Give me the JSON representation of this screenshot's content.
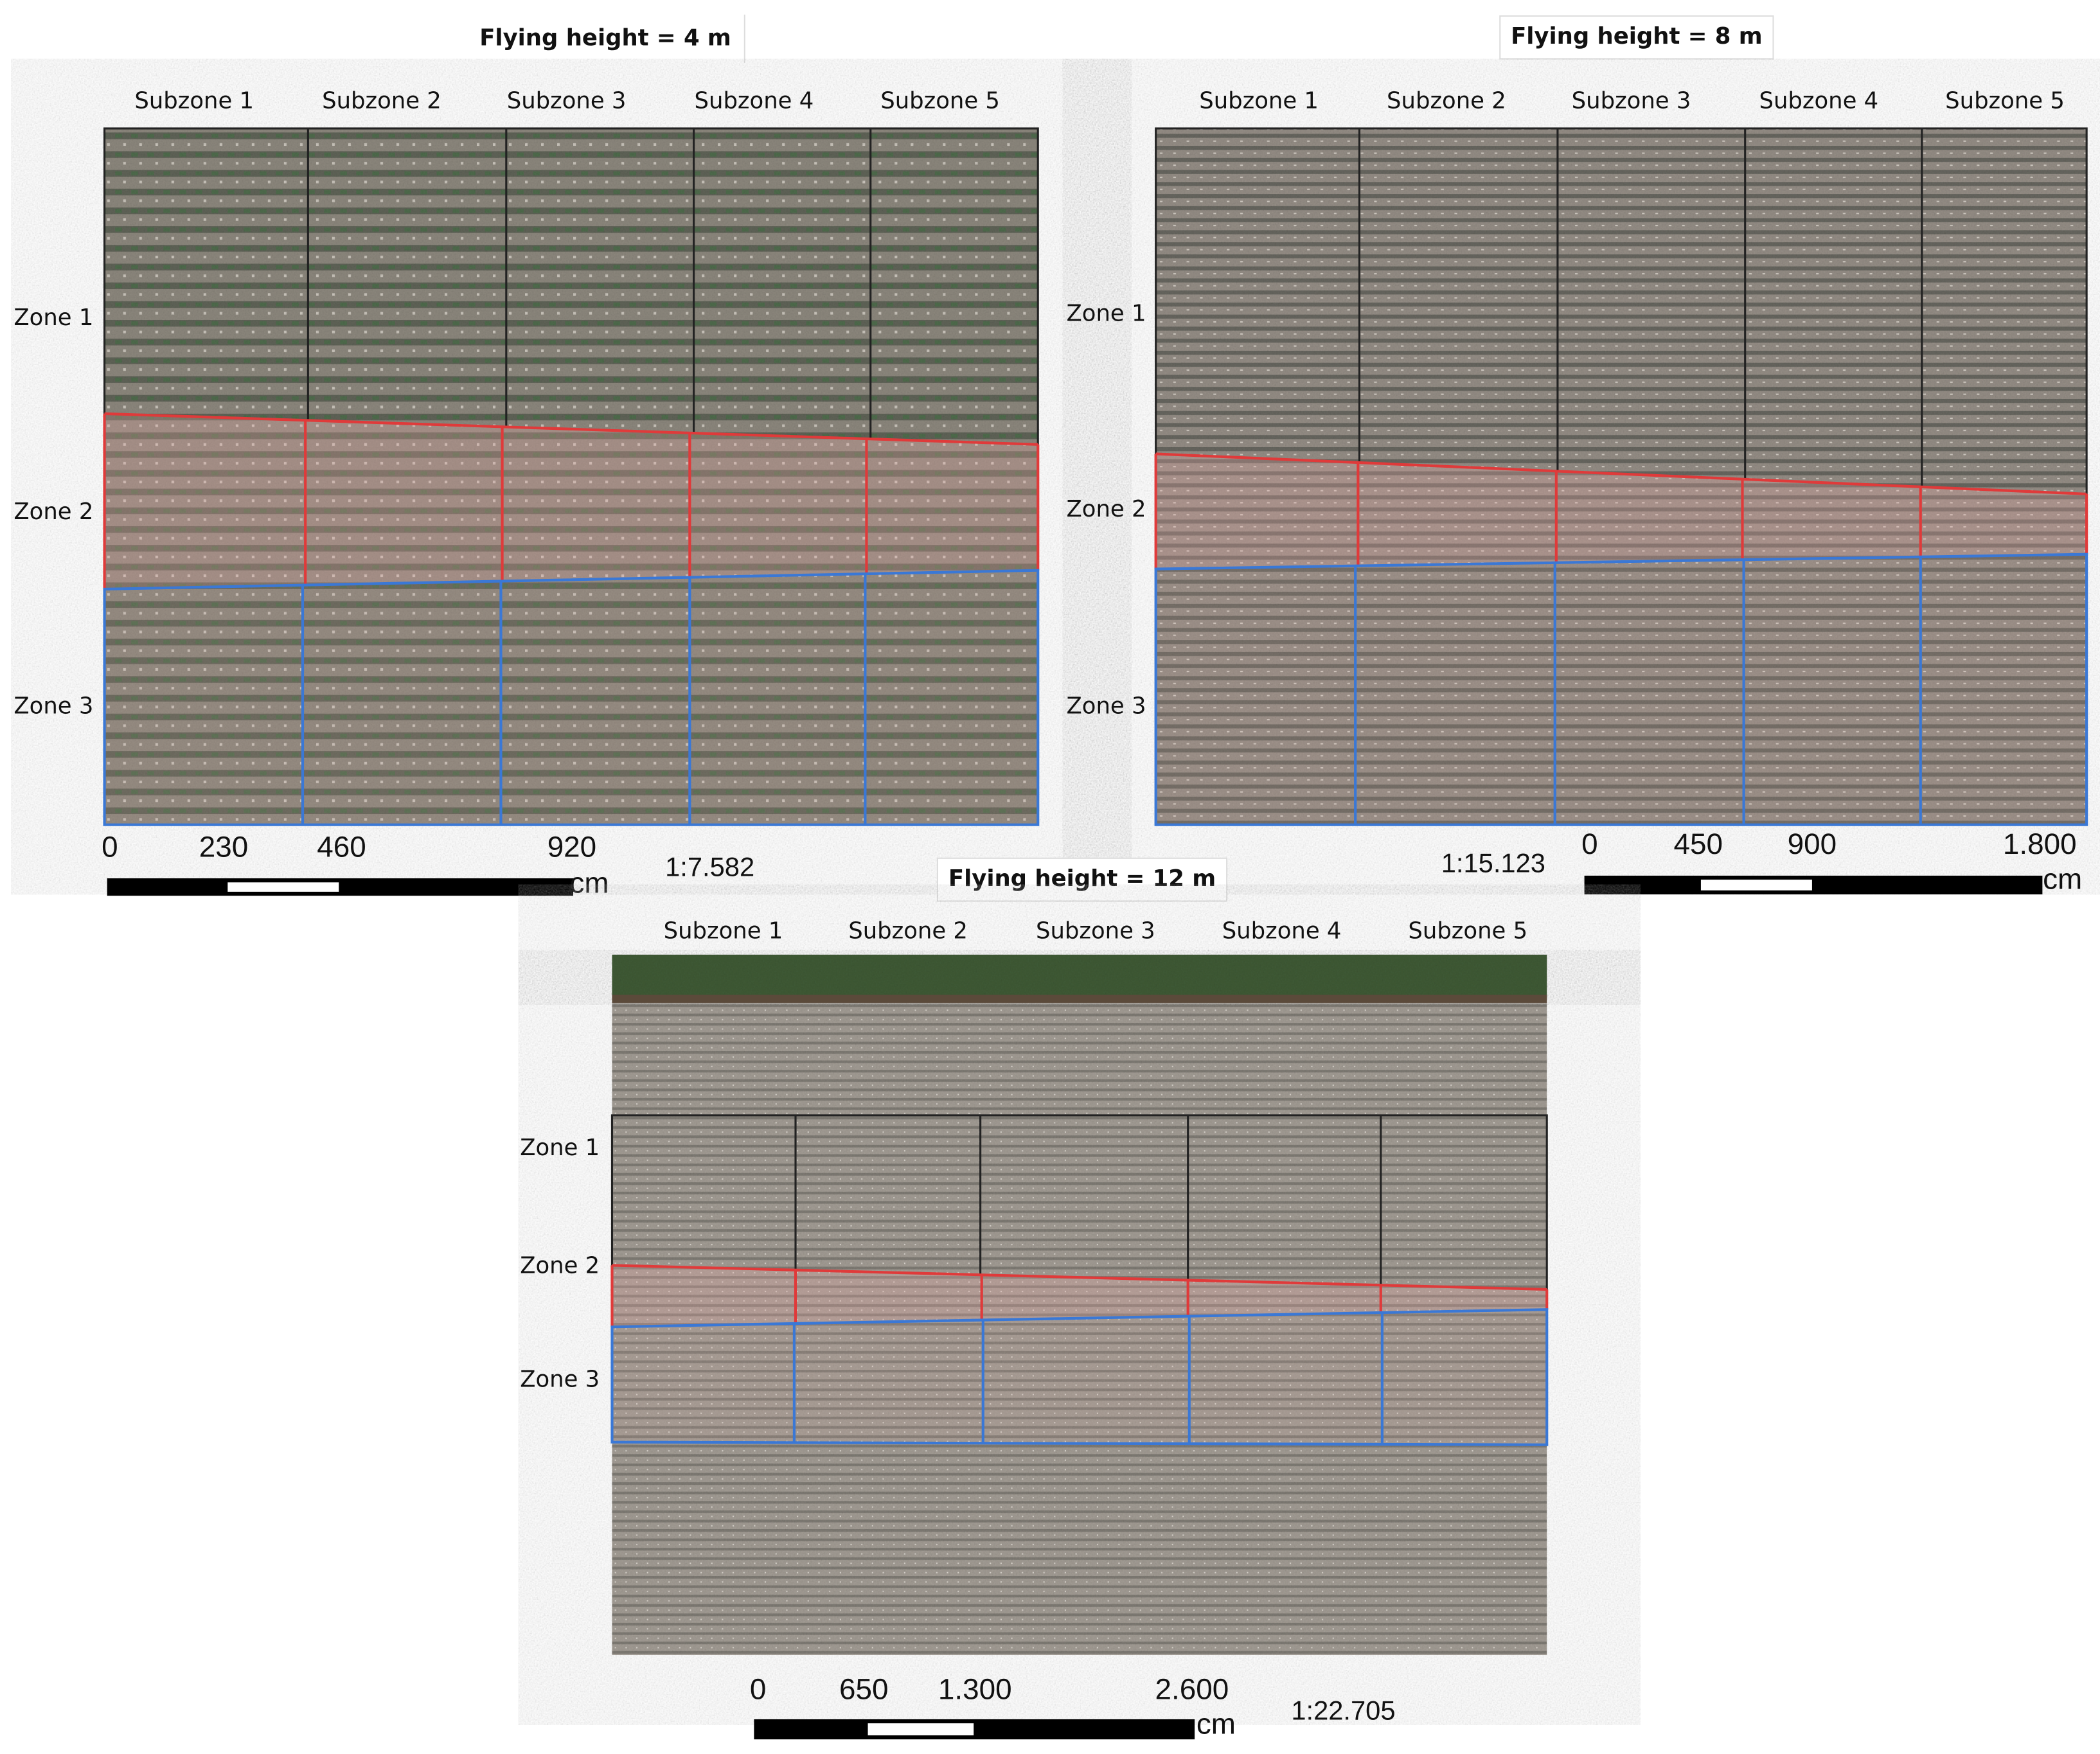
{
  "panels": [
    {
      "title": "Flying height = 4 m",
      "subzones": [
        "Subzone 1",
        "Subzone 2",
        "Subzone 3",
        "Subzone 4",
        "Subzone 5"
      ],
      "zones": [
        "Zone 1",
        "Zone 2",
        "Zone 3"
      ],
      "scale_bar": {
        "ticks": [
          "0",
          "230",
          "460",
          "920"
        ],
        "unit": "cm",
        "ratio": "1:7.582"
      }
    },
    {
      "title": "Flying height = 8 m",
      "subzones": [
        "Subzone 1",
        "Subzone 2",
        "Subzone 3",
        "Subzone 4",
        "Subzone 5"
      ],
      "zones": [
        "Zone 1",
        "Zone 2",
        "Zone 3"
      ],
      "scale_bar": {
        "ticks": [
          "0",
          "450",
          "900",
          "1.800"
        ],
        "unit": "cm",
        "ratio": "1:15.123"
      }
    },
    {
      "title": "Flying height = 12 m",
      "subzones": [
        "Subzone 1",
        "Subzone 2",
        "Subzone 3",
        "Subzone 4",
        "Subzone 5"
      ],
      "zones": [
        "Zone 1",
        "Zone 2",
        "Zone 3"
      ],
      "scale_bar": {
        "ticks": [
          "0",
          "650",
          "1.300",
          "2.600"
        ],
        "unit": "cm",
        "ratio": "1:22.705"
      }
    }
  ]
}
